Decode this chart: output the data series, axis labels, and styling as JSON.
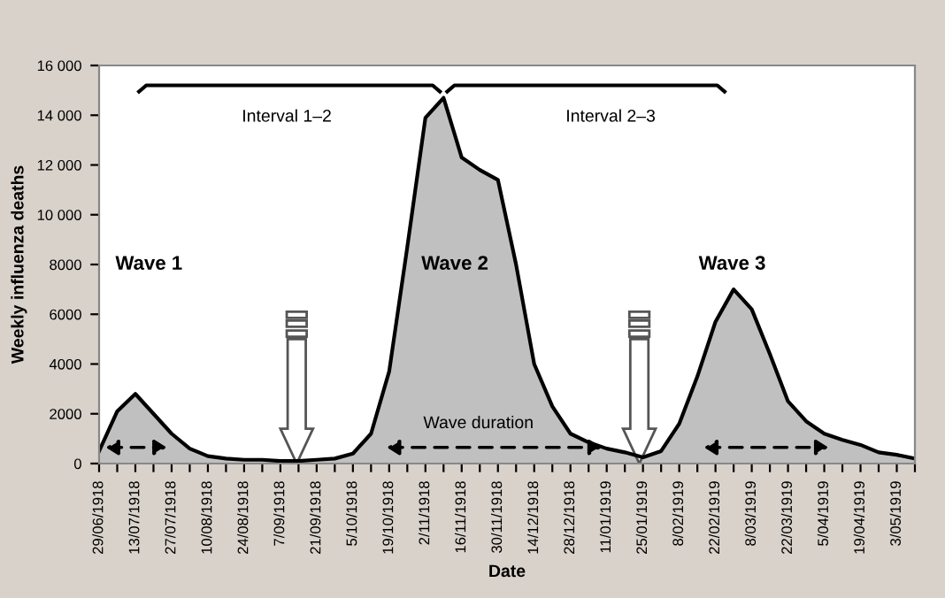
{
  "chart_data": {
    "type": "area",
    "xlabel": "Date",
    "ylabel": "Weekly influenza deaths",
    "categories": [
      "29/06/1918",
      null,
      "13/07/1918",
      null,
      "27/07/1918",
      null,
      "10/08/1918",
      null,
      "24/08/1918",
      null,
      "7/09/1918",
      null,
      "21/09/1918",
      null,
      "5/10/1918",
      null,
      "19/10/1918",
      null,
      "2/11/1918",
      null,
      "16/11/1918",
      null,
      "30/11/1918",
      null,
      "14/12/1918",
      null,
      "28/12/1918",
      null,
      "11/01/1919",
      null,
      "25/01/1919",
      null,
      "8/02/1919",
      null,
      "22/02/1919",
      null,
      "8/03/1919",
      null,
      "22/03/1919",
      null,
      "5/04/1919",
      null,
      "19/04/1919",
      null,
      "3/05/1919",
      null
    ],
    "series": [
      {
        "color": "#c0c0c0",
        "values": [
          500,
          2100,
          2800,
          2000,
          1200,
          600,
          300,
          200,
          150,
          150,
          100,
          100,
          150,
          200,
          400,
          1200,
          3700,
          8700,
          13900,
          14700,
          12300,
          11800,
          11400,
          8000,
          4000,
          2300,
          1200,
          850,
          600,
          450,
          250,
          500,
          1600,
          3500,
          5700,
          7000,
          6200,
          4400,
          2500,
          1700,
          1200,
          950,
          750,
          450,
          350,
          200
        ]
      }
    ],
    "ylim": [
      0,
      16000
    ],
    "yticks": [
      0,
      2000,
      4000,
      6000,
      8000,
      {
        "value": 10000,
        "label": "10 000"
      },
      {
        "value": 12000,
        "label": "12 000"
      },
      {
        "value": 14000,
        "label": "14 000"
      },
      {
        "value": 16000,
        "label": "16 000"
      }
    ],
    "grid": false,
    "annotations": [
      "Interval 1–2",
      "Interval 2–3",
      "Wave 1",
      "Wave 2",
      "Wave 3",
      "Wave duration"
    ]
  }
}
